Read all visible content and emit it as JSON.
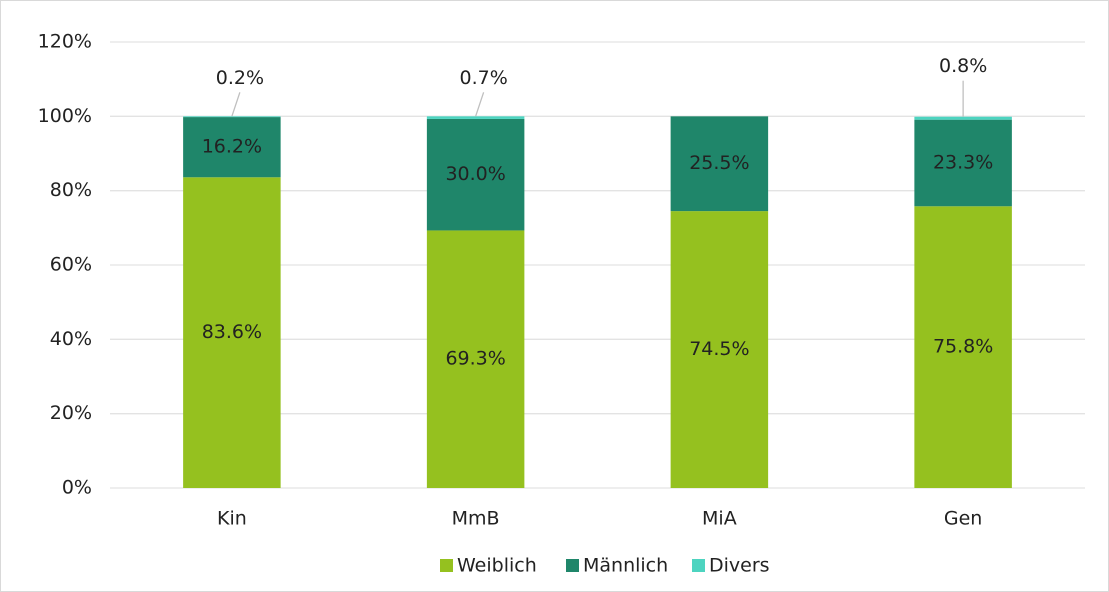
{
  "chart_data": {
    "type": "stacked_bar",
    "categories": [
      "Kin",
      "MmB",
      "MiA",
      "Gen"
    ],
    "series": [
      {
        "name": "Weiblich",
        "color": "#95c11f",
        "values": [
          83.6,
          69.3,
          74.5,
          75.8
        ],
        "value_labels": [
          "83.6%",
          "69.3%",
          "74.5%",
          "75.8%"
        ]
      },
      {
        "name": "Männlich",
        "color": "#1f866a",
        "values": [
          16.2,
          30.0,
          25.5,
          23.3
        ],
        "value_labels": [
          "16.2%",
          "30.0%",
          "25.5%",
          "23.3%"
        ]
      },
      {
        "name": "Divers",
        "color": "#4dd4c0",
        "values": [
          0.2,
          0.7,
          0,
          0.8
        ],
        "value_labels": [
          "0.2%",
          "0.7%",
          null,
          "0.8%"
        ]
      }
    ],
    "ylim": [
      0,
      120
    ],
    "yticks": [
      {
        "value": 0,
        "label": "0%"
      },
      {
        "value": 20,
        "label": "20%"
      },
      {
        "value": 40,
        "label": "40%"
      },
      {
        "value": 60,
        "label": "60%"
      },
      {
        "value": 80,
        "label": "80%"
      },
      {
        "value": 100,
        "label": "100%"
      },
      {
        "value": 120,
        "label": "120%"
      }
    ],
    "grid": true,
    "legend": "bottom"
  }
}
